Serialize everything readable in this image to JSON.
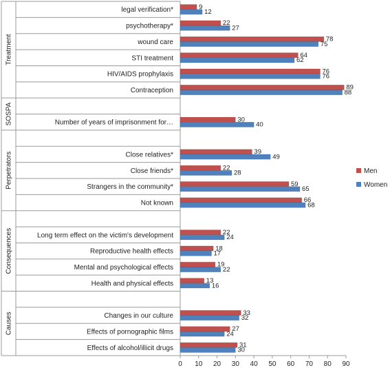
{
  "chart_data": {
    "type": "bar",
    "orientation": "horizontal",
    "xlim": [
      0,
      90
    ],
    "xticks": [
      0,
      10,
      20,
      30,
      40,
      50,
      60,
      70,
      80,
      90
    ],
    "grid": false,
    "legend_position": "right",
    "colors": {
      "Men": "#c0504d",
      "Women": "#4f81bd"
    },
    "groups": [
      {
        "name": "Treatment",
        "categories": [
          {
            "label": "legal verification*",
            "men": 9,
            "women": 12
          },
          {
            "label": "psychotherapy*",
            "men": 22,
            "women": 27
          },
          {
            "label": "wound care",
            "men": 78,
            "women": 75
          },
          {
            "label": "STI treatment",
            "men": 64,
            "women": 62
          },
          {
            "label": "HIV/AIDS prophylaxis",
            "men": 76,
            "women": 76
          },
          {
            "label": "Contraception",
            "men": 89,
            "women": 88
          }
        ]
      },
      {
        "name": "SOSPA",
        "categories": [
          {
            "label": "Number of years of imprisonment for…",
            "men": 30,
            "women": 40
          }
        ]
      },
      {
        "name": "Perpetrators",
        "categories": [
          {
            "label": "Close relatives*",
            "men": 39,
            "women": 49
          },
          {
            "label": "Close friends*",
            "men": 22,
            "women": 28
          },
          {
            "label": "Strangers in the community*",
            "men": 59,
            "women": 65
          },
          {
            "label": "Not known",
            "men": 66,
            "women": 68
          }
        ]
      },
      {
        "name": "Consequences",
        "categories": [
          {
            "label": "Long term effect on the victim's development",
            "men": 22,
            "women": 24
          },
          {
            "label": "Reproductive health effects",
            "men": 18,
            "women": 17
          },
          {
            "label": "Mental and psychological effects",
            "men": 19,
            "women": 22
          },
          {
            "label": "Health and physical effects",
            "men": 13,
            "women": 16
          }
        ]
      },
      {
        "name": "Causes",
        "categories": [
          {
            "label": "Changes in our culture",
            "men": 33,
            "women": 32
          },
          {
            "label": "Effects of pornographic films",
            "men": 27,
            "women": 24
          },
          {
            "label": "Effects of alcohol/illicit drugs",
            "men": 31,
            "women": 30
          }
        ]
      }
    ],
    "series": [
      {
        "name": "Men",
        "key": "men"
      },
      {
        "name": "Women",
        "key": "women"
      }
    ]
  }
}
